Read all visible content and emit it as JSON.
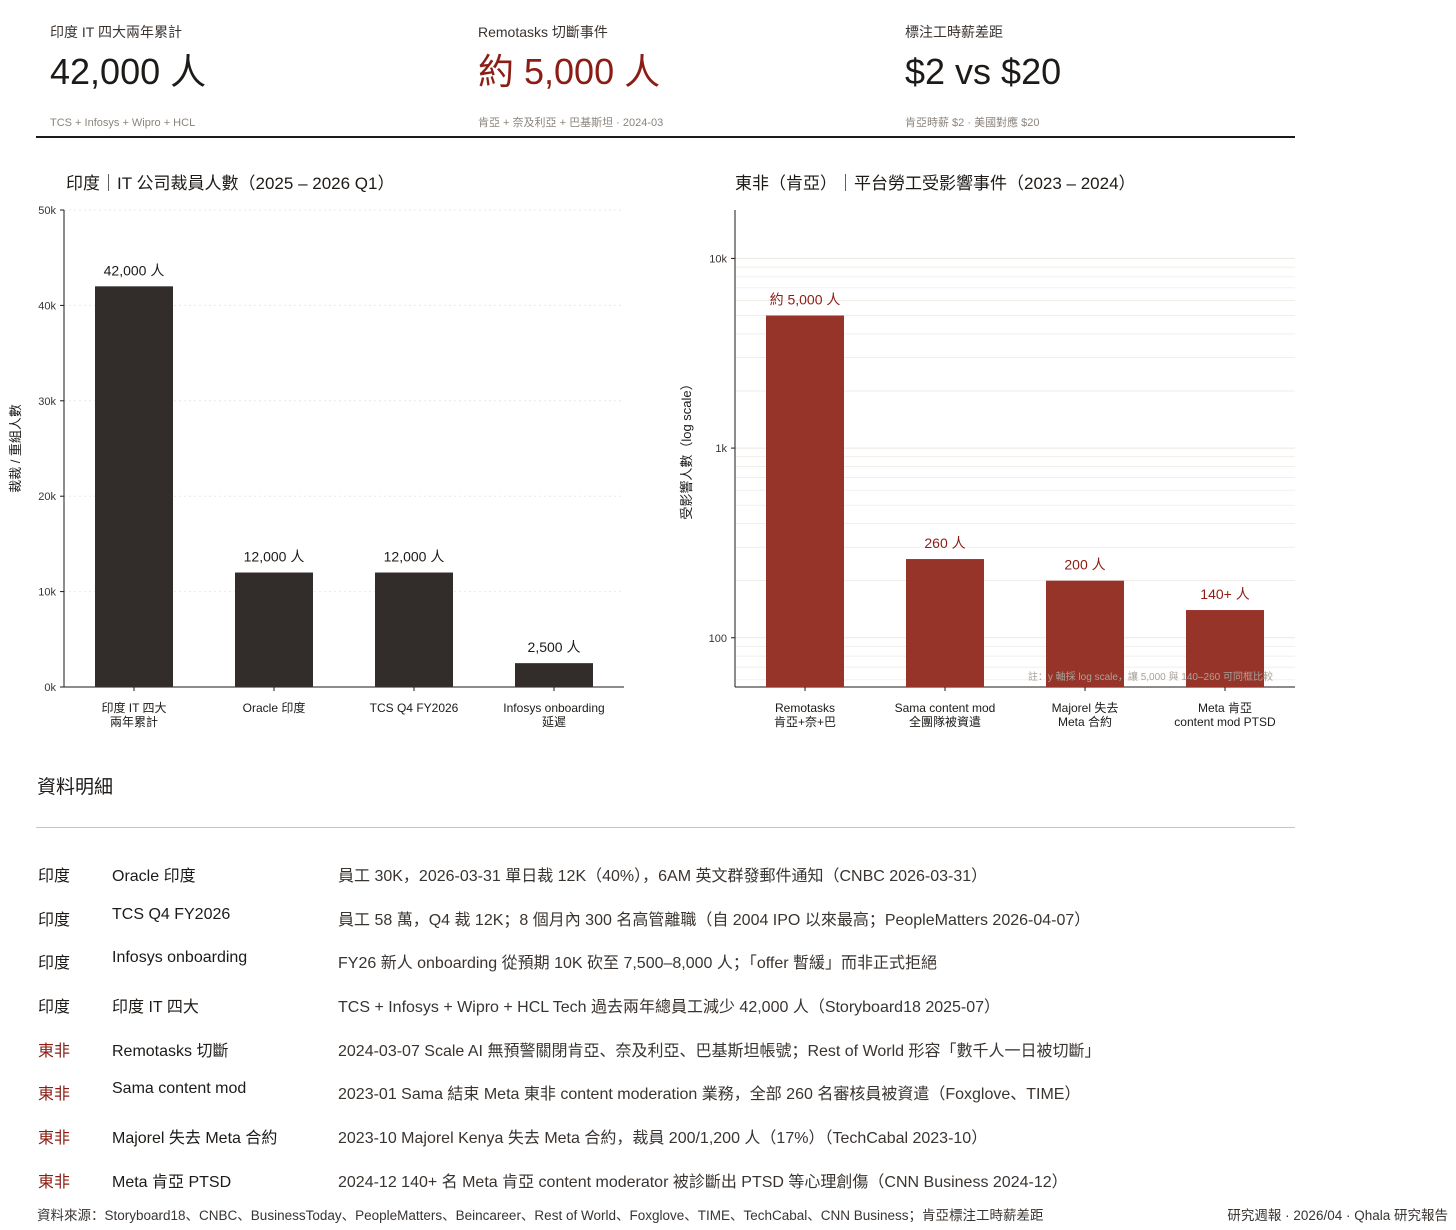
{
  "kpis": [
    {
      "label": "印度 IT 四大兩年累計",
      "value": "42,000 人",
      "sub": "TCS + Infosys + Wipro + HCL"
    },
    {
      "label": "Remotasks 切斷事件",
      "value": "約 5,000 人",
      "sub": "肯亞 + 奈及利亞 + 巴基斯坦 ·   2024-03"
    },
    {
      "label": "標注工時薪差距",
      "value": "$2 vs $20",
      "sub": "肯亞時薪 $2 ·   美國對應 $20"
    }
  ],
  "colors": {
    "dark_bar": "#322d2a",
    "red_bar": "#97342a",
    "red_text": "#8b1d14",
    "axis": "#1d1a17",
    "grid": "#ece8e2"
  },
  "chart_data": [
    {
      "type": "bar",
      "title": "印度｜IT 公司裁員人數（2025 – 2026 Q1）",
      "xlabel": "",
      "ylabel": "裁裁 / 重組人數",
      "ylim": [
        0,
        50000
      ],
      "yticks": [
        0,
        10000,
        20000,
        30000,
        40000,
        50000
      ],
      "ytick_labels": [
        "0k",
        "10k",
        "20k",
        "30k",
        "40k",
        "50k"
      ],
      "categories": [
        [
          "印度 IT 四大",
          "兩年累計"
        ],
        [
          "Oracle 印度"
        ],
        [
          "TCS Q4 FY2026"
        ],
        [
          "Infosys onboarding",
          "延遲"
        ]
      ],
      "values": [
        42000,
        12000,
        12000,
        2500
      ],
      "data_labels": [
        "42,000 人",
        "12,000 人",
        "12,000 人",
        "2,500 人"
      ],
      "grid": true
    },
    {
      "type": "bar",
      "title": "東非（肯亞）｜平台勞工受影響事件（2023 – 2024）",
      "xlabel": "",
      "ylabel": "受影響人數（log scale）",
      "yscale": "log",
      "ylim": [
        55,
        18000
      ],
      "yticks": [
        100,
        1000,
        10000
      ],
      "ytick_labels": [
        "100",
        "1k",
        "10k"
      ],
      "categories": [
        [
          "Remotasks",
          "肯亞+奈+巴"
        ],
        [
          "Sama content mod",
          "全團隊被資遣"
        ],
        [
          "Majorel 失去",
          "Meta 合約"
        ],
        [
          "Meta 肯亞",
          "content mod PTSD"
        ]
      ],
      "values": [
        5000,
        260,
        200,
        140
      ],
      "data_labels": [
        "約 5,000 人",
        "260 人",
        "200 人",
        "140+ 人"
      ],
      "note": "註：y 軸採 log scale，讓 5,000 與 140–260 可同框比較",
      "grid": true
    }
  ],
  "details": {
    "title": "資料明細",
    "rows": [
      {
        "region": "印度",
        "highlight": false,
        "name": "Oracle 印度",
        "desc": "員工 30K，2026-03-31 單日裁 12K（40%），6AM 英文群發郵件通知（CNBC 2026-03-31）"
      },
      {
        "region": "印度",
        "highlight": false,
        "name": "TCS Q4 FY2026",
        "desc": "員工 58 萬，Q4 裁 12K；8 個月內 300 名高管離職（自 2004 IPO 以來最高；PeopleMatters 2026-04-07）"
      },
      {
        "region": "印度",
        "highlight": false,
        "name": "Infosys onboarding",
        "desc": "FY26 新人 onboarding 從預期 10K 砍至 7,500–8,000 人；「offer 暫緩」而非正式拒絕"
      },
      {
        "region": "印度",
        "highlight": false,
        "name": "印度 IT 四大",
        "desc": "TCS + Infosys + Wipro + HCL Tech 過去兩年總員工減少 42,000 人（Storyboard18 2025-07）"
      },
      {
        "region": "東非",
        "highlight": true,
        "name": "Remotasks 切斷",
        "desc": "2024-03-07 Scale AI 無預警關閉肯亞、奈及利亞、巴基斯坦帳號；Rest of World 形容「數千人一日被切斷」"
      },
      {
        "region": "東非",
        "highlight": true,
        "name": "Sama content mod",
        "desc": "2023-01 Sama 結束 Meta 東非 content moderation 業務，全部 260 名審核員被資遣（Foxglove、TIME）"
      },
      {
        "region": "東非",
        "highlight": true,
        "name": "Majorel 失去 Meta 合約",
        "desc": "2023-10 Majorel Kenya 失去 Meta 合約，裁員 200/1,200 人（17%）（TechCabal 2023-10）"
      },
      {
        "region": "東非",
        "highlight": true,
        "name": "Meta 肯亞 PTSD",
        "desc": "2024-12 140+ 名 Meta 肯亞 content moderator 被診斷出 PTSD 等心理創傷（CNN Business 2024-12）"
      }
    ]
  },
  "footer": {
    "sources": "資料來源：Storyboard18、CNBC、BusinessToday、PeopleMatters、Beincareer、Rest of World、Foxglove、TIME、TechCabal、CNN Business；肯亞標注工時薪差距",
    "right": "研究週報 · 2026/04 · Qhala 研究報告"
  }
}
